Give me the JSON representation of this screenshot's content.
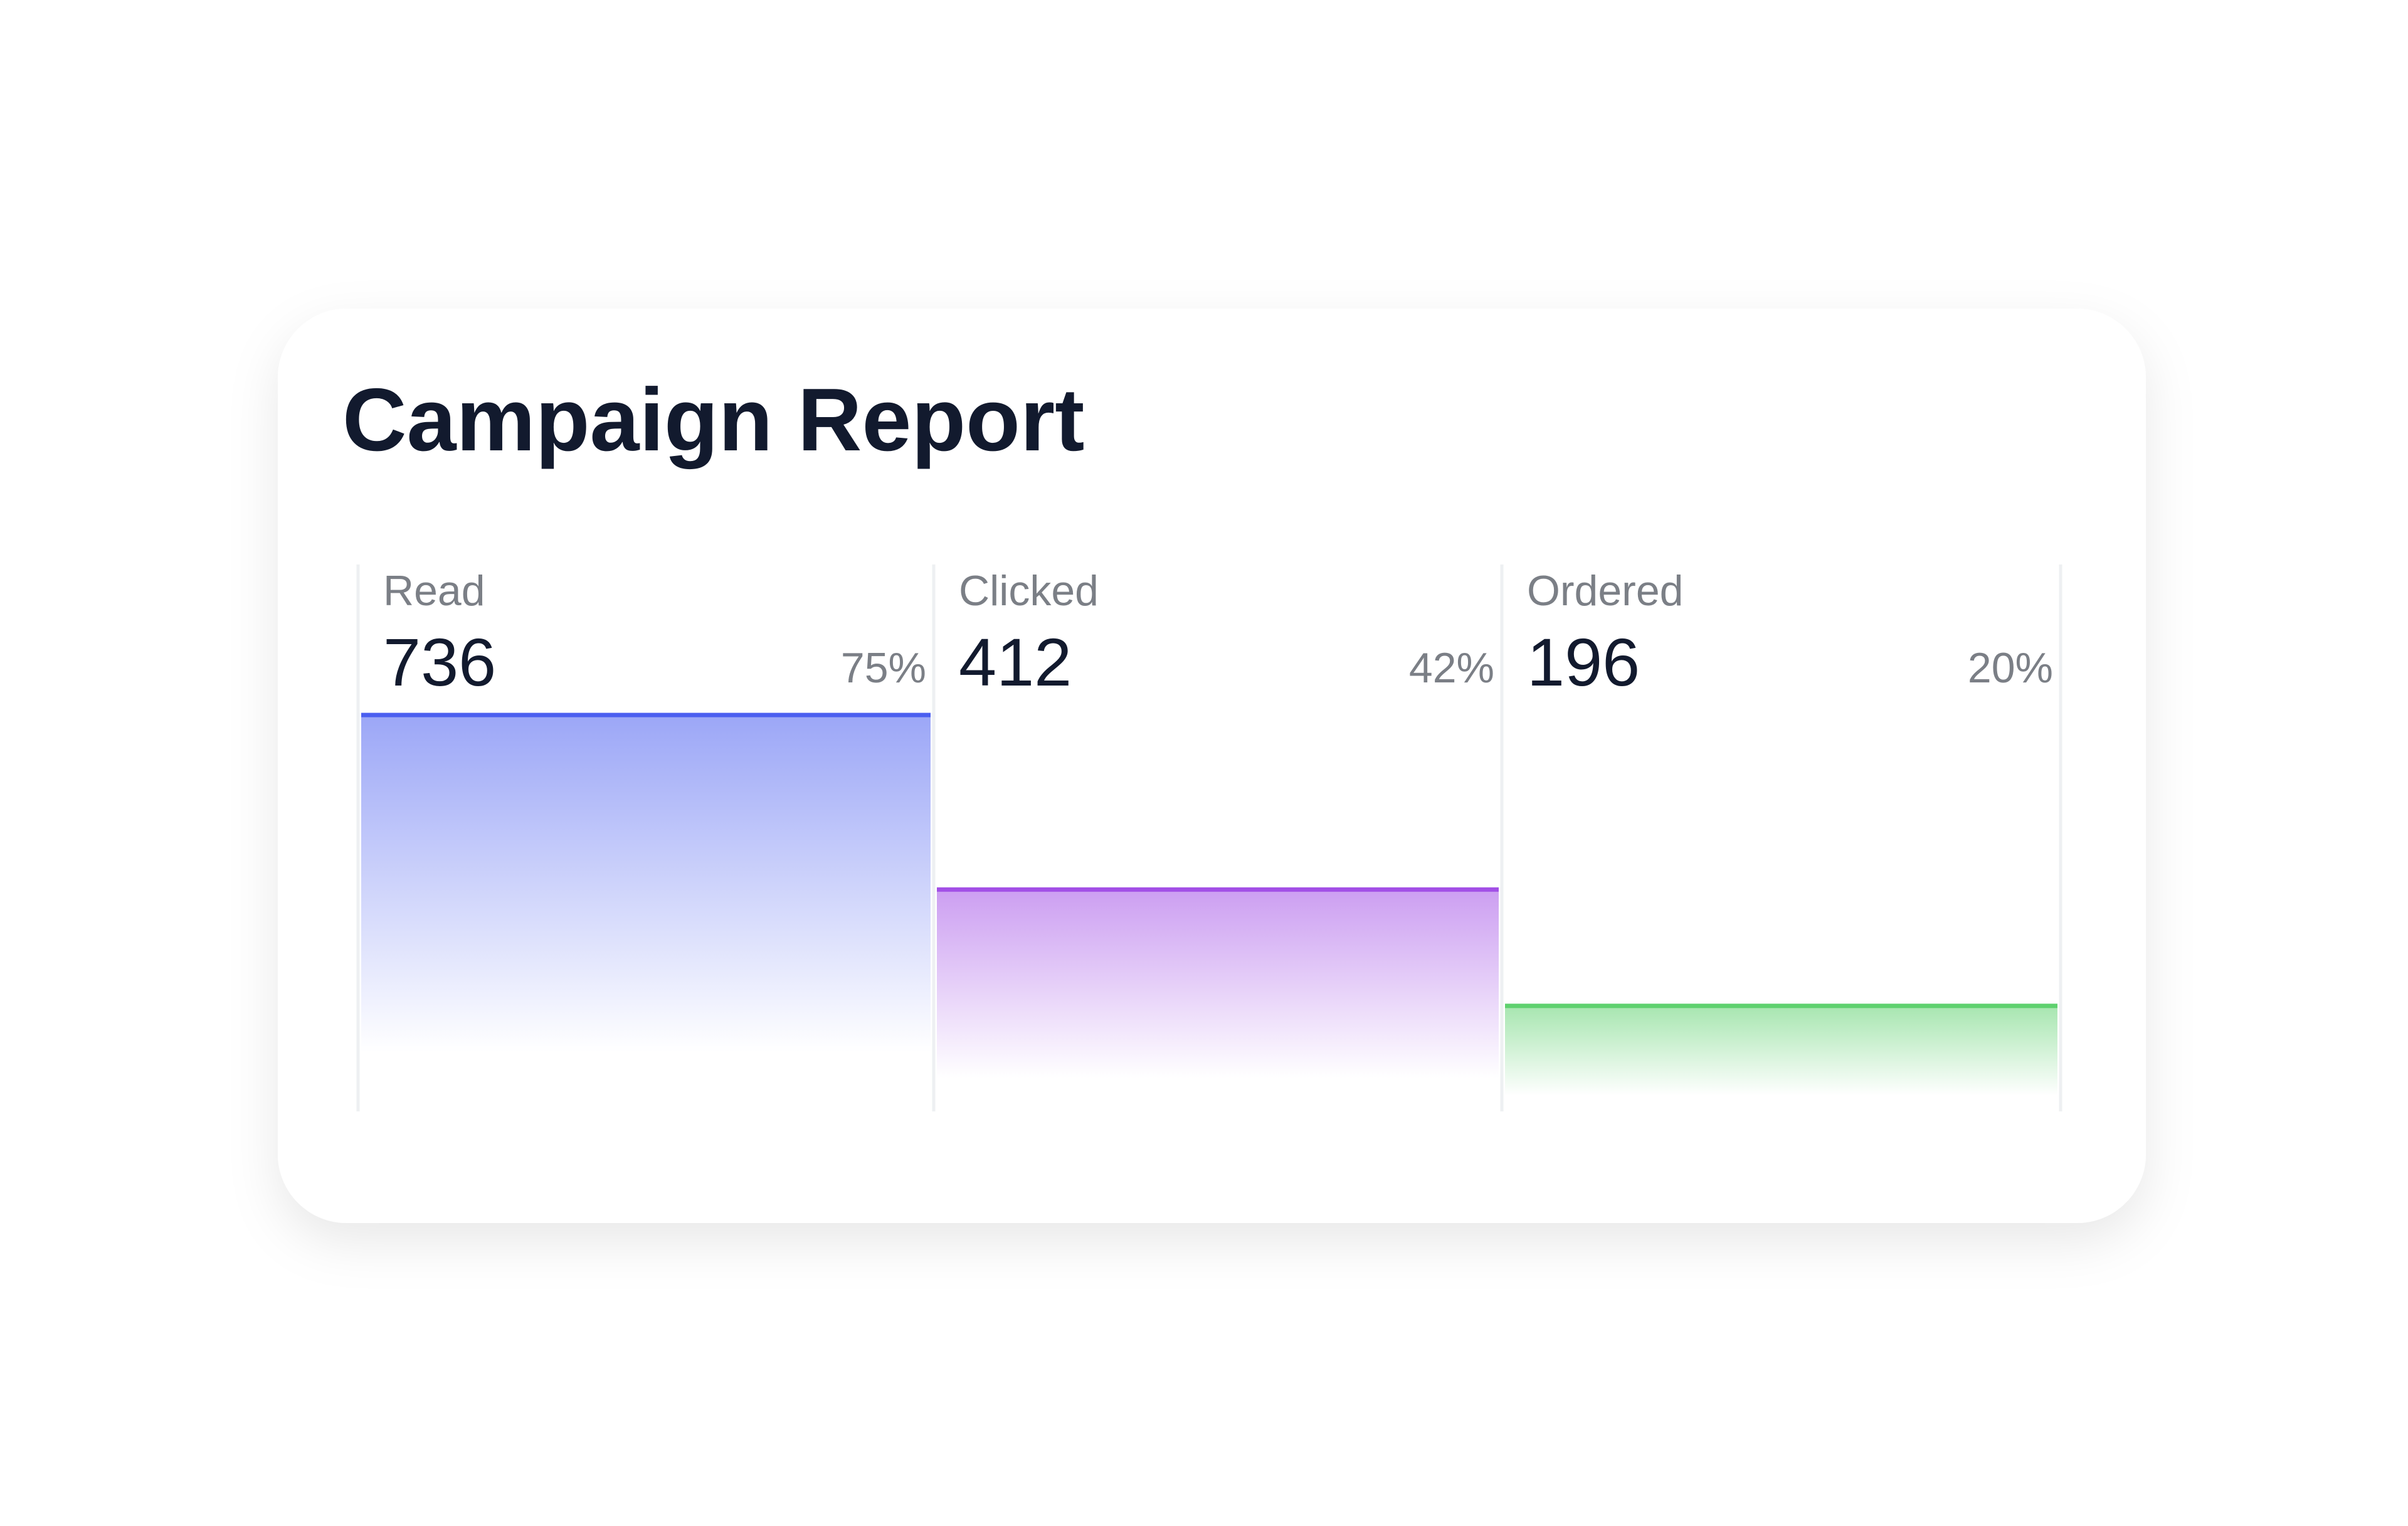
{
  "chart_data": {
    "type": "funnel-bar",
    "title": "Campaign Report",
    "categories": [
      "Read",
      "Clicked",
      "Ordered"
    ],
    "values": [
      736,
      412,
      196
    ],
    "shares": [
      {
        "value": 75,
        "label": "75%"
      },
      {
        "value": 42,
        "label": "42%"
      },
      {
        "value": 20,
        "label": "20%"
      }
    ],
    "colors": [
      "#4a5ef0",
      "#a24fe6",
      "#5fd16f"
    ]
  }
}
